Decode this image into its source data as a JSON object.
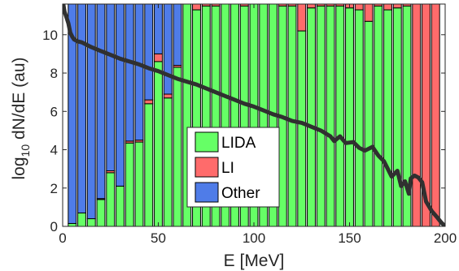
{
  "chart_data": {
    "type": "bar",
    "stacked": true,
    "xlabel": "E  [MeV]",
    "ylabel_main": "log",
    "ylabel_sub": "10",
    "ylabel_rest": " dN/dE (au)",
    "xlim": [
      0,
      200
    ],
    "ylim": [
      0,
      11.6
    ],
    "xticks": [
      0,
      50,
      100,
      150,
      200
    ],
    "yticks": [
      0,
      2,
      4,
      6,
      8,
      10
    ],
    "grid": false,
    "legend_position": "center",
    "bar_width": 4.2,
    "categories": [
      5,
      10,
      15,
      20,
      25,
      30,
      35,
      40,
      45,
      50,
      55,
      60,
      65,
      70,
      75,
      80,
      85,
      90,
      95,
      100,
      105,
      110,
      115,
      120,
      125,
      130,
      135,
      140,
      145,
      150,
      155,
      160,
      165,
      170,
      175,
      180,
      185,
      190,
      195
    ],
    "series": [
      {
        "name": "LIDA",
        "color": "#66ff66",
        "values": [
          0.15,
          0.7,
          0.4,
          1.4,
          2.8,
          2.1,
          4.35,
          4.4,
          6.4,
          8.6,
          6.7,
          8.3,
          11.6,
          11.3,
          11.5,
          11.5,
          11.6,
          11.6,
          11.5,
          11.6,
          11.6,
          11.6,
          11.5,
          11.5,
          10.2,
          11.4,
          11.5,
          11.5,
          11.5,
          11.4,
          11.3,
          10.7,
          11.5,
          11.3,
          11.4,
          11.5,
          0,
          0,
          0
        ]
      },
      {
        "name": "LI",
        "color": "#ff6b6b",
        "values": [
          0,
          0,
          0,
          0.05,
          0.1,
          0,
          0.1,
          0.1,
          0.2,
          0.4,
          0.2,
          0.1,
          0,
          0.3,
          0.1,
          0.1,
          0,
          0,
          0.1,
          0,
          0,
          0,
          0.1,
          0.1,
          1.4,
          0.2,
          0.1,
          0.1,
          0.1,
          0.2,
          0.3,
          0.9,
          0.1,
          0.3,
          0.2,
          0.1,
          11.6,
          11.6,
          11.6
        ]
      },
      {
        "name": "Other",
        "color": "#4f7ce8",
        "values": [
          11.45,
          10.9,
          11.2,
          10.15,
          8.7,
          9.5,
          7.15,
          7.1,
          5.0,
          2.6,
          4.7,
          3.2,
          0,
          0,
          0,
          0,
          0,
          0,
          0,
          0,
          0,
          0,
          0,
          0,
          0,
          0,
          0,
          0,
          0,
          0,
          0,
          0,
          0,
          0,
          0,
          0,
          0,
          0,
          0
        ]
      }
    ],
    "line": {
      "color": "#303030",
      "x": [
        0,
        1,
        2,
        3,
        4,
        5,
        6,
        8,
        10,
        15,
        20,
        25,
        30,
        35,
        40,
        45,
        50,
        55,
        60,
        65,
        70,
        75,
        80,
        85,
        90,
        95,
        100,
        105,
        110,
        115,
        120,
        125,
        130,
        135,
        140,
        142,
        145,
        148,
        152,
        155,
        158,
        162,
        165,
        168,
        170,
        172,
        175,
        177,
        179,
        181,
        182,
        184,
        186,
        188,
        190,
        193,
        196,
        198,
        200
      ],
      "y": [
        11.8,
        11.2,
        10.9,
        10.6,
        10.1,
        9.9,
        9.75,
        9.65,
        9.6,
        9.35,
        9.15,
        8.95,
        8.75,
        8.6,
        8.45,
        8.25,
        8.1,
        7.9,
        7.7,
        7.55,
        7.4,
        7.2,
        7.0,
        6.8,
        6.6,
        6.4,
        6.25,
        6.05,
        5.85,
        5.7,
        5.5,
        5.4,
        5.2,
        5.0,
        4.7,
        4.45,
        4.7,
        4.35,
        4.4,
        4.1,
        3.95,
        4.15,
        3.7,
        3.4,
        3.0,
        2.6,
        2.9,
        2.1,
        2.35,
        1.7,
        2.5,
        2.65,
        2.55,
        2.3,
        1.3,
        0.8,
        0.45,
        0.2,
        0.0
      ]
    }
  }
}
